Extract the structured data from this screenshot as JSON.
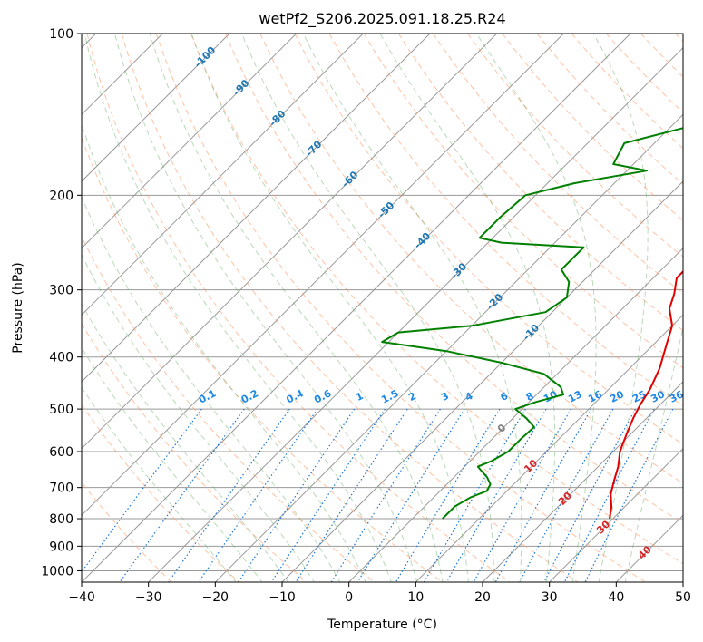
{
  "chart_data": {
    "type": "line",
    "title": "wetPf2_S206.2025.091.18.25.R24",
    "xlabel": "Temperature (°C)",
    "ylabel": "Pressure (hPa)",
    "xlim": [
      -40,
      50
    ],
    "ylim": [
      1050,
      100
    ],
    "y_scale": "log",
    "grid": true,
    "x_ticks": [
      -40,
      -30,
      -20,
      -10,
      0,
      10,
      20,
      30,
      40,
      50
    ],
    "x_tick_labels": [
      "−40",
      "−30",
      "−20",
      "−10",
      "0",
      "10",
      "20",
      "30",
      "40",
      "50"
    ],
    "y_ticks": [
      100,
      200,
      300,
      400,
      500,
      600,
      700,
      800,
      900,
      1000
    ],
    "y_tick_labels": [
      "100",
      "200",
      "300",
      "400",
      "500",
      "600",
      "700",
      "800",
      "900",
      "1000"
    ],
    "series": [
      {
        "id": "temperature",
        "color": "#e00000",
        "points": [
          [
            8.5,
            100
          ],
          [
            9,
            110
          ],
          [
            9,
            125
          ],
          [
            12,
            145
          ],
          [
            10,
            165
          ],
          [
            8.8,
            180
          ],
          [
            8.8,
            200
          ],
          [
            8.7,
            225
          ],
          [
            6,
            245
          ],
          [
            3.5,
            262
          ],
          [
            3.5,
            285
          ],
          [
            5.5,
            305
          ],
          [
            7,
            325
          ],
          [
            10,
            350
          ],
          [
            12,
            380
          ],
          [
            14.5,
            420
          ],
          [
            16.2,
            460
          ],
          [
            17,
            490
          ],
          [
            18,
            520
          ],
          [
            19.5,
            560
          ],
          [
            21,
            600
          ],
          [
            23,
            640
          ],
          [
            24.5,
            680
          ],
          [
            26,
            720
          ],
          [
            28,
            760
          ],
          [
            29.5,
            800
          ]
        ]
      },
      {
        "id": "dewpoint",
        "color": "#008000",
        "points": [
          [
            3,
            100
          ],
          [
            -1,
            110
          ],
          [
            -5,
            125
          ],
          [
            -11,
            140
          ],
          [
            -16,
            145
          ],
          [
            -18,
            150
          ],
          [
            -24.5,
            160
          ],
          [
            -23,
            175
          ],
          [
            -17,
            180
          ],
          [
            -26,
            190
          ],
          [
            -31.5,
            200
          ],
          [
            -32,
            220
          ],
          [
            -32,
            240
          ],
          [
            -28,
            245
          ],
          [
            -15,
            250
          ],
          [
            -15,
            275
          ],
          [
            -12,
            290
          ],
          [
            -10,
            310
          ],
          [
            -11,
            330
          ],
          [
            -20,
            350
          ],
          [
            -30,
            360
          ],
          [
            -31,
            375
          ],
          [
            -20,
            390
          ],
          [
            -10,
            410
          ],
          [
            -2,
            430
          ],
          [
            2.5,
            455
          ],
          [
            4,
            470
          ],
          [
            1,
            485
          ],
          [
            -1,
            500
          ],
          [
            2,
            520
          ],
          [
            4.5,
            540
          ],
          [
            4.3,
            570
          ],
          [
            4.3,
            600
          ],
          [
            3.2,
            625
          ],
          [
            2,
            640
          ],
          [
            3,
            650
          ],
          [
            5,
            670
          ],
          [
            6.5,
            690
          ],
          [
            7,
            710
          ],
          [
            5.5,
            730
          ],
          [
            4.5,
            760
          ],
          [
            4.5,
            800
          ]
        ]
      }
    ],
    "isotherm_labels": [
      {
        "value": -100,
        "text": "-100"
      },
      {
        "value": -90,
        "text": "-90"
      },
      {
        "value": -80,
        "text": "-80"
      },
      {
        "value": -70,
        "text": "-70"
      },
      {
        "value": -60,
        "text": "-60"
      },
      {
        "value": -50,
        "text": "-50"
      },
      {
        "value": -40,
        "text": "-40"
      },
      {
        "value": -30,
        "text": "-30"
      },
      {
        "value": -20,
        "text": "-20"
      },
      {
        "value": -10,
        "text": "-10"
      }
    ],
    "mixing_ratio_labels": [
      "0.1",
      "0.2",
      "0.4",
      "0.6",
      "1",
      "1.5",
      "2",
      "3",
      "4",
      "6",
      "8",
      "10",
      "13",
      "16",
      "20",
      "25",
      "30",
      "36"
    ],
    "lower_isotherm_labels": [
      {
        "value": 0,
        "text": "0",
        "color": "#808080"
      },
      {
        "value": 10,
        "text": "10",
        "color": "#d62728"
      },
      {
        "value": 20,
        "text": "20",
        "color": "#d62728"
      },
      {
        "value": 30,
        "text": "30",
        "color": "#d62728"
      },
      {
        "value": 40,
        "text": "40",
        "color": "#d62728"
      }
    ],
    "colors": {
      "temperature": "#e00000",
      "dewpoint": "#008000",
      "dry_adiabat": "#ff9966",
      "moist_adiabat": "#66aa66",
      "mixing_ratio": "#1f77d4",
      "isotherm": "#999999",
      "isotherm_label": "#1f77b4"
    }
  }
}
